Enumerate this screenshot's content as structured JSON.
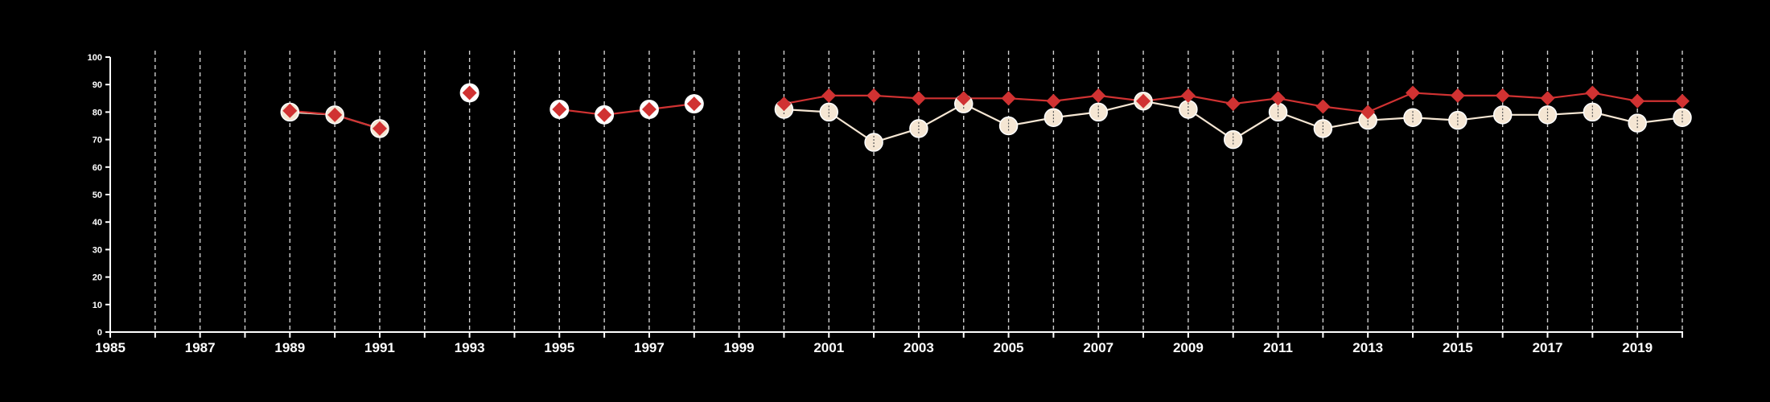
{
  "chart_data": {
    "type": "line",
    "title": "",
    "xlabel": "",
    "ylabel": "",
    "xlim": [
      1985,
      2020
    ],
    "ylim": [
      0,
      100
    ],
    "x_ticks": [
      "1985",
      "1987",
      "1989",
      "1991",
      "1993",
      "1995",
      "1997",
      "1999",
      "2001",
      "2003",
      "2005",
      "2007",
      "2009",
      "2011",
      "2013",
      "2015",
      "2017",
      "2019"
    ],
    "y_ticks": [
      "0",
      "10",
      "20",
      "30",
      "40",
      "50",
      "60",
      "70",
      "80",
      "90",
      "100"
    ],
    "grid": "vertical dashed lines at each year",
    "legend": "none",
    "series": [
      {
        "color": "#f5e6d3",
        "marker": "circle",
        "points": [
          [
            1989,
            80
          ],
          [
            1990,
            79
          ],
          [
            1991,
            74
          ],
          [
            2000,
            81
          ],
          [
            2001,
            80
          ],
          [
            2002,
            69
          ],
          [
            2003,
            74
          ],
          [
            2004,
            83
          ],
          [
            2005,
            75
          ],
          [
            2006,
            78
          ],
          [
            2007,
            80
          ],
          [
            2008,
            84
          ],
          [
            2009,
            81
          ],
          [
            2010,
            70
          ],
          [
            2011,
            80
          ],
          [
            2012,
            74
          ],
          [
            2013,
            77
          ],
          [
            2014,
            78
          ],
          [
            2015,
            77
          ],
          [
            2016,
            79
          ],
          [
            2017,
            79
          ],
          [
            2018,
            80
          ],
          [
            2019,
            76
          ],
          [
            2020,
            78
          ]
        ]
      },
      {
        "color": "#d03232",
        "marker": "diamond",
        "points": [
          [
            1989,
            80.5
          ],
          [
            1990,
            79
          ],
          [
            1991,
            74
          ],
          [
            1993,
            87
          ],
          [
            1995,
            81
          ],
          [
            1996,
            79
          ],
          [
            1997,
            81
          ],
          [
            1998,
            83
          ],
          [
            2000,
            83
          ],
          [
            2001,
            86
          ],
          [
            2002,
            86
          ],
          [
            2003,
            85
          ],
          [
            2004,
            85
          ],
          [
            2005,
            85
          ],
          [
            2006,
            84
          ],
          [
            2007,
            86
          ],
          [
            2008,
            84
          ],
          [
            2009,
            86
          ],
          [
            2010,
            83
          ],
          [
            2011,
            85
          ],
          [
            2012,
            82
          ],
          [
            2013,
            80
          ],
          [
            2014,
            87
          ],
          [
            2015,
            86
          ],
          [
            2016,
            86
          ],
          [
            2017,
            85
          ],
          [
            2018,
            87
          ],
          [
            2019,
            84
          ],
          [
            2020,
            84
          ]
        ],
        "ring_only_points": [
          [
            1993,
            87
          ],
          [
            1995,
            81
          ],
          [
            1996,
            79
          ],
          [
            1997,
            81
          ],
          [
            1998,
            83
          ]
        ]
      }
    ]
  }
}
